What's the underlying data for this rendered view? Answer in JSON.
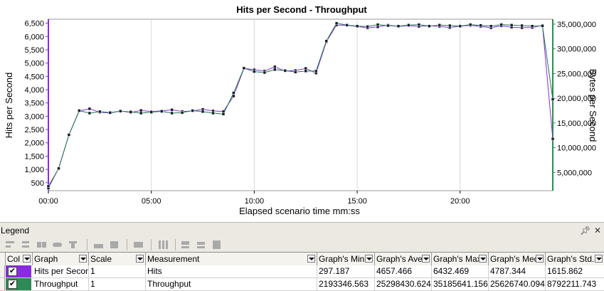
{
  "chart_data": {
    "type": "line",
    "title": "Hits per Second - Throughput",
    "xlabel": "Elapsed scenario time mm:ss",
    "ylabel_left": "Hits per Second",
    "ylabel_right": "Bytes per Second",
    "x_ticks": [
      "00:00",
      "05:00",
      "10:00",
      "15:00",
      "20:00"
    ],
    "x_tick_values": [
      0,
      300,
      600,
      900,
      1200
    ],
    "xlim": [
      0,
      1470
    ],
    "y_left_ticks": [
      "500",
      "1,000",
      "1,500",
      "2,000",
      "2,500",
      "3,000",
      "3,500",
      "4,000",
      "4,500",
      "5,000",
      "5,500",
      "6,000",
      "6,500"
    ],
    "y_left_tick_values": [
      500,
      1000,
      1500,
      2000,
      2500,
      3000,
      3500,
      4000,
      4500,
      5000,
      5500,
      6000,
      6500
    ],
    "ylim_left": [
      200,
      6650
    ],
    "y_right_ticks": [
      "5,000,000",
      "10,000,000",
      "15,000,000",
      "20,000,000",
      "25,000,000",
      "30,000,000",
      "35,000,000"
    ],
    "y_right_tick_values": [
      5000000,
      10000000,
      15000000,
      20000000,
      25000000,
      30000000,
      35000000
    ],
    "ylim_right": [
      1300000,
      36000000
    ],
    "grid": "vertical",
    "series": [
      {
        "name": "Hits per Second",
        "axis": "left",
        "color": "#8a2be2",
        "x": [
          0,
          30,
          60,
          90,
          120,
          150,
          180,
          210,
          240,
          270,
          300,
          330,
          360,
          390,
          420,
          450,
          480,
          510,
          540,
          570,
          600,
          630,
          660,
          690,
          720,
          750,
          780,
          810,
          840,
          870,
          900,
          930,
          960,
          990,
          1020,
          1050,
          1080,
          1110,
          1140,
          1170,
          1200,
          1230,
          1260,
          1290,
          1320,
          1350,
          1380,
          1410,
          1440,
          1470
        ],
        "y": [
          297,
          1050,
          2300,
          3200,
          3280,
          3150,
          3120,
          3200,
          3140,
          3220,
          3180,
          3200,
          3240,
          3180,
          3200,
          3260,
          3200,
          3180,
          3760,
          4800,
          4750,
          4700,
          4860,
          4700,
          4720,
          4800,
          4620,
          5800,
          6432,
          6420,
          6380,
          6320,
          6360,
          6430,
          6380,
          6410,
          6380,
          6400,
          6380,
          6340,
          6390,
          6420,
          6380,
          6330,
          6400,
          6350,
          6330,
          6340,
          6420,
          2150
        ]
      },
      {
        "name": "Throughput",
        "axis": "right",
        "color": "#1a7a4a",
        "x": [
          0,
          30,
          60,
          90,
          120,
          150,
          180,
          210,
          240,
          270,
          300,
          330,
          360,
          390,
          420,
          450,
          480,
          510,
          540,
          570,
          600,
          630,
          660,
          690,
          720,
          750,
          780,
          810,
          840,
          870,
          900,
          930,
          960,
          990,
          1020,
          1050,
          1080,
          1110,
          1140,
          1170,
          1200,
          1230,
          1260,
          1290,
          1320,
          1350,
          1380,
          1410,
          1440,
          1470
        ],
        "y": [
          2193347,
          5800000,
          12600000,
          17500000,
          17000000,
          17300000,
          17100000,
          17400000,
          17250000,
          17000000,
          17200000,
          17350000,
          17000000,
          17100000,
          17500000,
          17300000,
          17000000,
          16800000,
          21100000,
          26100000,
          25400000,
          25200000,
          25800000,
          25600000,
          25300000,
          25500000,
          25500000,
          31600000,
          35185641,
          34800000,
          34600000,
          34500000,
          34900000,
          34700000,
          34600000,
          34800000,
          34900000,
          34600000,
          34800000,
          34700000,
          34600000,
          34900000,
          34750000,
          34600000,
          34900000,
          34800000,
          34700000,
          34600000,
          34650000,
          19800000
        ]
      }
    ]
  },
  "legend": {
    "title": "Legend",
    "pin_icon": "pin-icon",
    "close_icon": "close-icon",
    "columns": [
      "Col",
      "Graph",
      "Scale",
      "Measurement",
      "Graph's Mini",
      "Graph's Ave",
      "Graph's Max",
      "Graph's Mec",
      "Graph's Std."
    ],
    "rows": [
      {
        "color": "#8a2be2",
        "checked": "✔",
        "graph": "Hits per Seconc",
        "scale": "1",
        "measurement": "Hits",
        "min": "297.187",
        "ave": "4657.466",
        "max": "6432.469",
        "med": "4787.344",
        "std": "1615.862"
      },
      {
        "color": "#2e8b57",
        "checked": "✔",
        "graph": "Throughput",
        "scale": "1",
        "measurement": "Throughput",
        "min": "2193346.563",
        "ave": "25298430.624",
        "max": "35185641.156",
        "med": "25626740.094",
        "std": "8792211.743"
      }
    ]
  }
}
